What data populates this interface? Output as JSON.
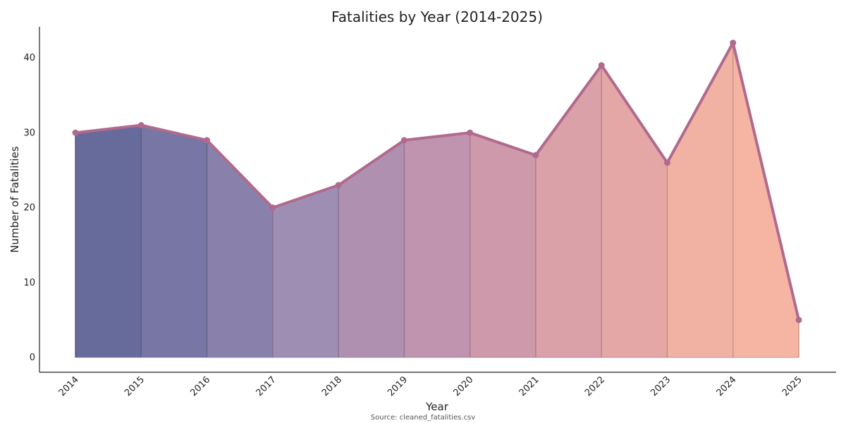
{
  "chart_data": {
    "type": "area",
    "title": "Fatalities by Year (2014-2025)",
    "xlabel": "Year",
    "ylabel": "Number of Fatalities",
    "source_note": "Source: cleaned_fatalities.csv",
    "categories": [
      "2014",
      "2015",
      "2016",
      "2017",
      "2018",
      "2019",
      "2020",
      "2021",
      "2022",
      "2023",
      "2024",
      "2025"
    ],
    "series": [
      {
        "values": [
          30,
          31,
          29,
          20,
          23,
          29,
          30,
          27,
          39,
          26,
          42,
          5
        ]
      }
    ],
    "yticks": [
      0,
      10,
      20,
      30,
      40
    ],
    "ylim": [
      -2,
      44
    ],
    "grid": false,
    "colors": {
      "line": "#b06a8e",
      "gradient": [
        "#5e6396",
        "#716f9f",
        "#8379a6",
        "#9a88b0",
        "#ab8aad",
        "#bd8eab",
        "#ca94a7",
        "#d99ca4",
        "#e4a2a0",
        "#f0ae9e",
        "#f5b19e",
        "#f8b59d"
      ]
    }
  }
}
